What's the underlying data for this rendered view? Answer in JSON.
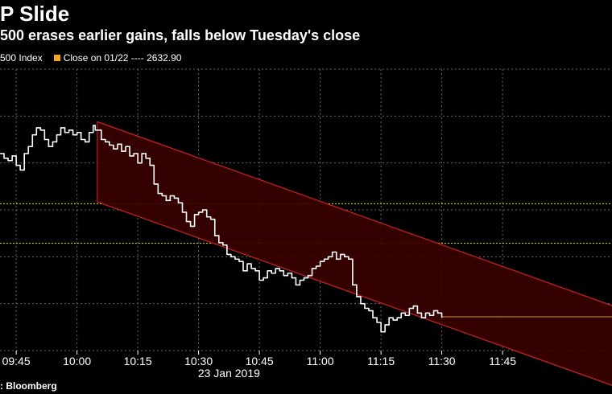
{
  "title": "P Slide",
  "subtitle": "500 erases earlier gains, falls below Tuesday's close",
  "legend": [
    {
      "label": "500 Index",
      "color": "#ffffff"
    },
    {
      "label": "Close on 01/22 ---- 2632.90",
      "color": "#f5a623"
    }
  ],
  "source": ": Bloomberg",
  "chart_data": {
    "type": "line",
    "xlabel": "23 Jan 2019",
    "x_ticks": [
      "09:45",
      "10:00",
      "10:15",
      "10:30",
      "10:45",
      "11:00",
      "11:15",
      "11:30",
      "11:45"
    ],
    "x_range_minutes": [
      581,
      732
    ],
    "y_range": [
      2610,
      2670
    ],
    "grid": true,
    "reference_lines": [
      {
        "name": "Close on 01/22",
        "value": 2632.9,
        "color": "#c8c800",
        "style": "dotted"
      },
      {
        "name": "",
        "value": 2641.3,
        "color": "#c8c800",
        "style": "dotted"
      }
    ],
    "channel": {
      "color": "#cc2222",
      "fill": "#3a0000",
      "upper": [
        [
          605,
          2658.8
        ],
        [
          732,
          2619.6
        ]
      ],
      "lower": [
        [
          605,
          2641.7
        ],
        [
          732,
          2602.6
        ]
      ]
    },
    "series": [
      {
        "name": "",
        "color": "#ffffff",
        "points": [
          [
            581,
            2652.0
          ],
          [
            582,
            2651.0
          ],
          [
            583,
            2650.5
          ],
          [
            584,
            2651.5
          ],
          [
            585,
            2649.5
          ],
          [
            586,
            2648.5
          ],
          [
            587,
            2652.0
          ],
          [
            588,
            2653.5
          ],
          [
            589,
            2656.0
          ],
          [
            590,
            2657.5
          ],
          [
            591,
            2657.0
          ],
          [
            592,
            2655.0
          ],
          [
            593,
            2653.5
          ],
          [
            594,
            2654.5
          ],
          [
            595,
            2656.0
          ],
          [
            596,
            2657.5
          ],
          [
            597,
            2656.5
          ],
          [
            598,
            2657.0
          ],
          [
            599,
            2656.0
          ],
          [
            600,
            2656.5
          ],
          [
            601,
            2655.0
          ],
          [
            602,
            2654.5
          ],
          [
            603,
            2656.5
          ],
          [
            604,
            2658.0
          ],
          [
            604.5,
            2657.0
          ],
          [
            605,
            2657.0
          ],
          [
            606,
            2655.0
          ],
          [
            607,
            2654.5
          ],
          [
            608,
            2653.8
          ],
          [
            609,
            2653.0
          ],
          [
            610,
            2654.0
          ],
          [
            611,
            2652.5
          ],
          [
            612,
            2653.5
          ],
          [
            613,
            2651.5
          ],
          [
            614,
            2652.0
          ],
          [
            615,
            2650.0
          ],
          [
            616,
            2652.0
          ],
          [
            617,
            2651.0
          ],
          [
            618,
            2649.5
          ],
          [
            619,
            2645.5
          ],
          [
            620,
            2643.5
          ],
          [
            621,
            2643.0
          ],
          [
            622,
            2642.0
          ],
          [
            623,
            2643.0
          ],
          [
            624,
            2642.5
          ],
          [
            625,
            2641.5
          ],
          [
            626,
            2639.5
          ],
          [
            627,
            2637.5
          ],
          [
            628,
            2636.5
          ],
          [
            629,
            2639.0
          ],
          [
            630,
            2639.5
          ],
          [
            631,
            2640.0
          ],
          [
            632,
            2638.5
          ],
          [
            633,
            2638.0
          ],
          [
            634,
            2634.5
          ],
          [
            635,
            2633.0
          ],
          [
            636,
            2632.5
          ],
          [
            637,
            2630.5
          ],
          [
            638,
            2630.0
          ],
          [
            639,
            2629.5
          ],
          [
            640,
            2629.0
          ],
          [
            641,
            2627.0
          ],
          [
            642,
            2628.5
          ],
          [
            643,
            2627.5
          ],
          [
            644,
            2627.0
          ],
          [
            645,
            2625.0
          ],
          [
            646,
            2625.5
          ],
          [
            647,
            2627.0
          ],
          [
            648,
            2626.5
          ],
          [
            649,
            2627.5
          ],
          [
            650,
            2627.0
          ],
          [
            651,
            2626.0
          ],
          [
            652,
            2626.5
          ],
          [
            653,
            2625.5
          ],
          [
            654,
            2624.0
          ],
          [
            655,
            2625.0
          ],
          [
            656,
            2625.5
          ],
          [
            657,
            2626.0
          ],
          [
            658,
            2627.5
          ],
          [
            659,
            2628.0
          ],
          [
            660,
            2629.0
          ],
          [
            661,
            2629.5
          ],
          [
            662,
            2630.0
          ],
          [
            663,
            2631.0
          ],
          [
            664,
            2629.5
          ],
          [
            665,
            2630.5
          ],
          [
            666,
            2630.0
          ],
          [
            667,
            2629.5
          ],
          [
            668,
            2624.0
          ],
          [
            669,
            2621.5
          ],
          [
            670,
            2620.0
          ],
          [
            671,
            2619.0
          ],
          [
            672,
            2618.5
          ],
          [
            673,
            2617.0
          ],
          [
            674,
            2616.0
          ],
          [
            675,
            2614.0
          ],
          [
            676,
            2615.5
          ],
          [
            677,
            2617.0
          ],
          [
            678,
            2616.5
          ],
          [
            679,
            2617.0
          ],
          [
            680,
            2618.0
          ],
          [
            681,
            2617.5
          ],
          [
            682,
            2619.0
          ],
          [
            683,
            2619.5
          ],
          [
            684,
            2618.0
          ],
          [
            685,
            2617.0
          ],
          [
            686,
            2618.0
          ],
          [
            687,
            2617.5
          ],
          [
            688,
            2618.5
          ],
          [
            689,
            2618.0
          ],
          [
            690,
            2617.0
          ]
        ]
      }
    ],
    "ref_end_tail": [
      [
        690,
        2617.2
      ],
      [
        732,
        2617.2
      ]
    ]
  }
}
